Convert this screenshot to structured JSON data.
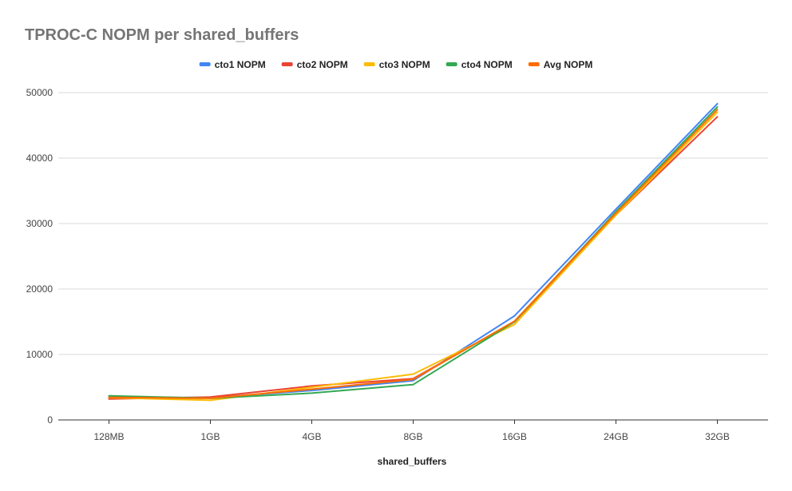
{
  "chart_data": {
    "type": "line",
    "title": "TPROC-C NOPM per shared_buffers",
    "xlabel": "shared_buffers",
    "ylabel": "",
    "categories": [
      "128MB",
      "1GB",
      "4GB",
      "8GB",
      "16GB",
      "24GB",
      "32GB"
    ],
    "ylim": [
      0,
      50000
    ],
    "yticks": [
      "0",
      "10000",
      "20000",
      "30000",
      "40000",
      "50000"
    ],
    "grid": true,
    "legend_position": "top",
    "series": [
      {
        "name": "cto1 NOPM",
        "color": "#4285f4",
        "values": [
          3500,
          3400,
          4500,
          6000,
          15900,
          32200,
          48300
        ]
      },
      {
        "name": "cto2 NOPM",
        "color": "#ea4335",
        "values": [
          3200,
          3500,
          5200,
          6300,
          15000,
          31300,
          46300
        ]
      },
      {
        "name": "cto3 NOPM",
        "color": "#fbbc04",
        "values": [
          3400,
          3000,
          5000,
          7000,
          14600,
          31300,
          47000
        ]
      },
      {
        "name": "cto4 NOPM",
        "color": "#34a853",
        "values": [
          3700,
          3300,
          4100,
          5400,
          15000,
          31800,
          47800
        ]
      },
      {
        "name": "Avg NOPM",
        "color": "#ff6d01",
        "values": [
          3450,
          3300,
          4700,
          6200,
          15100,
          31600,
          47400
        ]
      }
    ]
  }
}
